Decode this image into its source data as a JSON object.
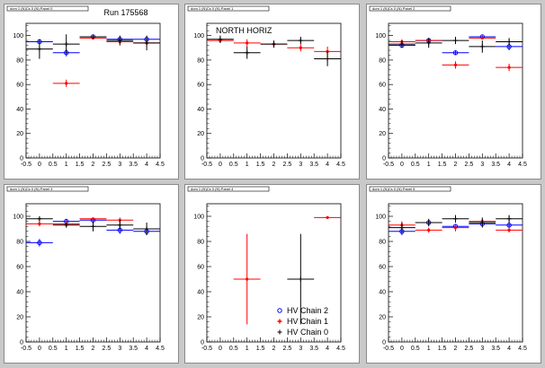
{
  "chart_data": [
    {
      "type": "scatter",
      "title": "Run 175568",
      "pad_label": "dom 1 (N)Cs 0 (N) Panel 0",
      "xlim": [
        -0.5,
        4.5
      ],
      "ylim": [
        0,
        110
      ],
      "xticks": [
        "-0.5",
        "0",
        "0.5",
        "1",
        "1.5",
        "2",
        "2.5",
        "3",
        "3.5",
        "4",
        "4.5"
      ],
      "yticks": [
        "0",
        "20",
        "40",
        "60",
        "80",
        "100"
      ],
      "series": [
        {
          "name": "HV Chain 2",
          "color": "#0000ff",
          "x": [
            0,
            1,
            2,
            3,
            4
          ],
          "y": [
            95,
            86,
            99,
            97,
            97
          ],
          "xerr": [
            0.5,
            0.5,
            0.5,
            0.5,
            0.5
          ],
          "yerr": [
            2,
            3,
            1,
            2,
            2
          ]
        },
        {
          "name": "HV Chain 1",
          "color": "#ff0000",
          "x": [
            1,
            2,
            3,
            4
          ],
          "y": [
            61,
            98,
            95,
            94
          ],
          "xerr": [
            0.5,
            0.5,
            0.5,
            0.5
          ],
          "yerr": [
            3,
            1,
            2,
            2
          ]
        },
        {
          "name": "HV Chain 0",
          "color": "#000000",
          "x": [
            0,
            1,
            2,
            3,
            4
          ],
          "y": [
            89,
            93,
            99,
            96,
            94
          ],
          "xerr": [
            0.5,
            0.5,
            0.5,
            0.5,
            0.5
          ],
          "yerr": [
            8,
            8,
            1,
            4,
            6
          ]
        }
      ]
    },
    {
      "type": "scatter",
      "title": "NORTH HORIZ",
      "pad_label": "dom 1 (N)Cs 0 (N) Panel 1",
      "xlim": [
        -0.5,
        4.5
      ],
      "ylim": [
        0,
        110
      ],
      "xticks": [
        "-0.5",
        "0",
        "0.5",
        "1",
        "1.5",
        "2",
        "2.5",
        "3",
        "3.5",
        "4",
        "4.5"
      ],
      "yticks": [
        "0",
        "20",
        "40",
        "60",
        "80",
        "100"
      ],
      "series": [
        {
          "name": "HV Chain 2",
          "color": "#0000ff",
          "x": [],
          "y": [],
          "xerr": [],
          "yerr": []
        },
        {
          "name": "HV Chain 1",
          "color": "#ff0000",
          "x": [
            0,
            1,
            2,
            3,
            4
          ],
          "y": [
            96,
            94,
            93,
            90,
            87
          ],
          "xerr": [
            0.5,
            0.5,
            0.5,
            0.5,
            0.5
          ],
          "yerr": [
            2,
            3,
            2,
            3,
            4
          ]
        },
        {
          "name": "HV Chain 0",
          "color": "#000000",
          "x": [
            0,
            1,
            2,
            3,
            4
          ],
          "y": [
            97,
            86,
            93,
            96,
            81
          ],
          "xerr": [
            0.5,
            0.5,
            0.5,
            0.5,
            0.5
          ],
          "yerr": [
            3,
            5,
            3,
            3,
            6
          ]
        }
      ]
    },
    {
      "type": "scatter",
      "title": "",
      "pad_label": "dom 1 (N)Cs 0 (N) Panel 2",
      "xlim": [
        -0.5,
        4.5
      ],
      "ylim": [
        0,
        110
      ],
      "xticks": [
        "-0.5",
        "0",
        "0.5",
        "1",
        "1.5",
        "2",
        "2.5",
        "3",
        "3.5",
        "4",
        "4.5"
      ],
      "yticks": [
        "0",
        "20",
        "40",
        "60",
        "80",
        "100"
      ],
      "series": [
        {
          "name": "HV Chain 2",
          "color": "#0000ff",
          "x": [
            0,
            1,
            2,
            3,
            4
          ],
          "y": [
            92,
            96,
            86,
            99,
            91
          ],
          "xerr": [
            0.5,
            0.5,
            0.5,
            0.5,
            0.5
          ],
          "yerr": [
            2,
            2,
            2,
            1,
            3
          ]
        },
        {
          "name": "HV Chain 1",
          "color": "#ff0000",
          "x": [
            0,
            1,
            2,
            3,
            4
          ],
          "y": [
            95,
            96,
            76,
            98,
            74
          ],
          "xerr": [
            0.5,
            0.5,
            0.5,
            0.5,
            0.5
          ],
          "yerr": [
            2,
            2,
            3,
            1,
            3
          ]
        },
        {
          "name": "HV Chain 0",
          "color": "#000000",
          "x": [
            0,
            1,
            2,
            3,
            4
          ],
          "y": [
            93,
            94,
            96,
            91,
            95
          ],
          "xerr": [
            0.5,
            0.5,
            0.5,
            0.5,
            0.5
          ],
          "yerr": [
            3,
            4,
            3,
            5,
            3
          ]
        }
      ]
    },
    {
      "type": "scatter",
      "title": "",
      "pad_label": "dom 1 (N)Cs 0 (N) Panel 3",
      "xlim": [
        -0.5,
        4.5
      ],
      "ylim": [
        0,
        110
      ],
      "xticks": [
        "-0.5",
        "0",
        "0.5",
        "1",
        "1.5",
        "2",
        "2.5",
        "3",
        "3.5",
        "4",
        "4.5"
      ],
      "yticks": [
        "0",
        "20",
        "40",
        "60",
        "80",
        "100"
      ],
      "series": [
        {
          "name": "HV Chain 2",
          "color": "#0000ff",
          "x": [
            0,
            1,
            2,
            3,
            4
          ],
          "y": [
            79,
            96,
            97,
            89,
            88
          ],
          "xerr": [
            0.5,
            0.5,
            0.5,
            0.5,
            0.5
          ],
          "yerr": [
            3,
            2,
            2,
            3,
            3
          ]
        },
        {
          "name": "HV Chain 1",
          "color": "#ff0000",
          "x": [
            0,
            1,
            2,
            3
          ],
          "y": [
            94,
            94,
            98,
            97
          ],
          "xerr": [
            0.5,
            0.5,
            0.5,
            0.5
          ],
          "yerr": [
            2,
            2,
            1,
            2
          ]
        },
        {
          "name": "HV Chain 0",
          "color": "#000000",
          "x": [
            0,
            1,
            2,
            3,
            4
          ],
          "y": [
            98,
            93,
            92,
            93,
            90
          ],
          "xerr": [
            0.5,
            0.5,
            0.5,
            0.5,
            0.5
          ],
          "yerr": [
            2,
            2,
            4,
            4,
            5
          ]
        }
      ]
    },
    {
      "type": "scatter",
      "title": "",
      "pad_label": "dom 1 (N)Cs 0 (N) Panel 4",
      "xlim": [
        -0.5,
        4.5
      ],
      "ylim": [
        0,
        110
      ],
      "xticks": [
        "-0.5",
        "0",
        "0.5",
        "1",
        "1.5",
        "2",
        "2.5",
        "3",
        "3.5",
        "4",
        "4.5"
      ],
      "yticks": [
        "0",
        "20",
        "40",
        "60",
        "80",
        "100"
      ],
      "legend": [
        "HV Chain 2",
        "HV Chain 1",
        "HV Chain 0"
      ],
      "series": [
        {
          "name": "HV Chain 2",
          "color": "#0000ff",
          "x": [],
          "y": [],
          "xerr": [],
          "yerr": []
        },
        {
          "name": "HV Chain 1",
          "color": "#ff0000",
          "x": [
            1,
            4
          ],
          "y": [
            50,
            99
          ],
          "xerr": [
            0.5,
            0.5
          ],
          "yerr": [
            36,
            1
          ]
        },
        {
          "name": "HV Chain 0",
          "color": "#000000",
          "x": [
            3
          ],
          "y": [
            50
          ],
          "xerr": [
            0.5
          ],
          "yerr": [
            36
          ]
        }
      ]
    },
    {
      "type": "scatter",
      "title": "",
      "pad_label": "dom 1 (N)Cs 0 (N) Panel 5",
      "xlim": [
        -0.5,
        4.5
      ],
      "ylim": [
        0,
        110
      ],
      "xticks": [
        "-0.5",
        "0",
        "0.5",
        "1",
        "1.5",
        "2",
        "2.5",
        "3",
        "3.5",
        "4",
        "4.5"
      ],
      "yticks": [
        "0",
        "20",
        "40",
        "60",
        "80",
        "100"
      ],
      "series": [
        {
          "name": "HV Chain 2",
          "color": "#0000ff",
          "x": [
            0,
            1,
            2,
            3,
            4
          ],
          "y": [
            88,
            95,
            92,
            94,
            93
          ],
          "xerr": [
            0.5,
            0.5,
            0.5,
            0.5,
            0.5
          ],
          "yerr": [
            3,
            2,
            2,
            2,
            2
          ]
        },
        {
          "name": "HV Chain 1",
          "color": "#ff0000",
          "x": [
            0,
            1,
            2,
            3,
            4
          ],
          "y": [
            93,
            89,
            91,
            96,
            89
          ],
          "xerr": [
            0.5,
            0.5,
            0.5,
            0.5,
            0.5
          ],
          "yerr": [
            3,
            2,
            3,
            2,
            2
          ]
        },
        {
          "name": "HV Chain 0",
          "color": "#000000",
          "x": [
            0,
            1,
            2,
            3,
            4
          ],
          "y": [
            91,
            95,
            98,
            95,
            98
          ],
          "xerr": [
            0.5,
            0.5,
            0.5,
            0.5,
            0.5
          ],
          "yerr": [
            4,
            3,
            3,
            4,
            3
          ]
        }
      ]
    }
  ]
}
